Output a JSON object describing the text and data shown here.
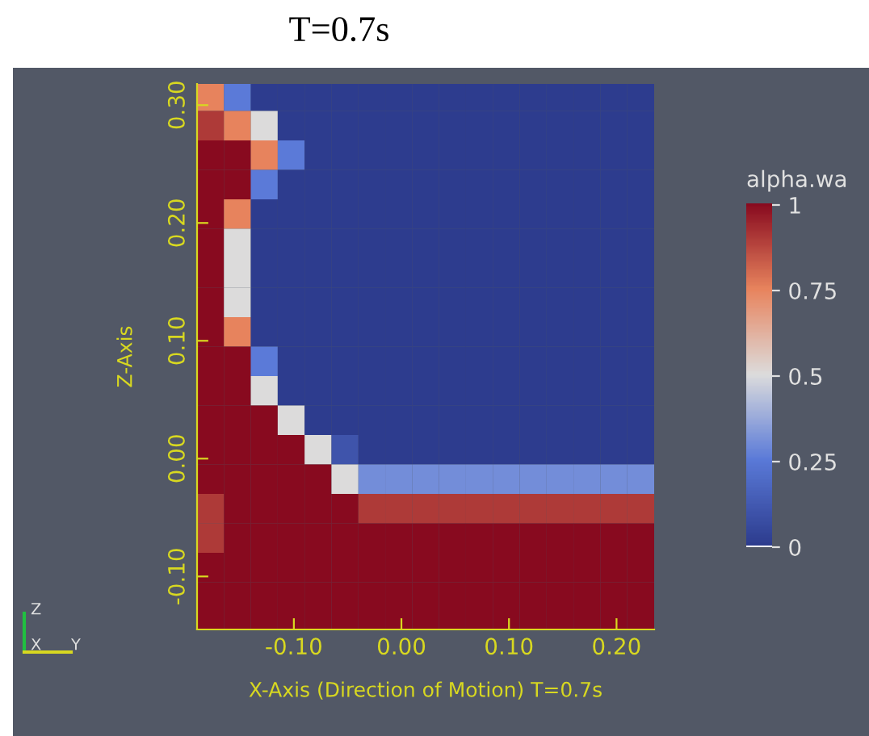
{
  "chart_data": {
    "type": "heatmap",
    "title": "T=0.7s",
    "xlabel": "X-Axis (Direction of Motion) T=0.7s",
    "ylabel": "Z-Axis",
    "clabel": "alpha.wa",
    "x": [
      -0.1775,
      -0.1525,
      -0.1275,
      -0.1025,
      -0.0775,
      -0.0525,
      -0.0275,
      -0.0025,
      0.0225,
      0.0475,
      0.0725,
      0.0975,
      0.1225,
      0.1475,
      0.1725,
      0.1975,
      0.2225
    ],
    "y": [
      0.3075,
      0.2825,
      0.2575,
      0.2325,
      0.2075,
      0.1825,
      0.1575,
      0.1325,
      0.1075,
      0.0825,
      0.0575,
      0.0325,
      0.0075,
      -0.0175,
      -0.0425,
      -0.0675,
      -0.0925,
      -0.1175,
      -0.1425
    ],
    "cells": [
      [
        0.75,
        0.25,
        0,
        0,
        0,
        0,
        0,
        0,
        0,
        0,
        0,
        0,
        0,
        0,
        0,
        0,
        0
      ],
      [
        0.9,
        0.75,
        0.5,
        0,
        0,
        0,
        0,
        0,
        0,
        0,
        0,
        0,
        0,
        0,
        0,
        0,
        0
      ],
      [
        1,
        1,
        0.75,
        0.25,
        0,
        0,
        0,
        0,
        0,
        0,
        0,
        0,
        0,
        0,
        0,
        0,
        0
      ],
      [
        1,
        1,
        0.25,
        0,
        0,
        0,
        0,
        0,
        0,
        0,
        0,
        0,
        0,
        0,
        0,
        0,
        0
      ],
      [
        1,
        0.75,
        0,
        0,
        0,
        0,
        0,
        0,
        0,
        0,
        0,
        0,
        0,
        0,
        0,
        0,
        0
      ],
      [
        1,
        0.5,
        0,
        0,
        0,
        0,
        0,
        0,
        0,
        0,
        0,
        0,
        0,
        0,
        0,
        0,
        0
      ],
      [
        1,
        0.5,
        0,
        0,
        0,
        0,
        0,
        0,
        0,
        0,
        0,
        0,
        0,
        0,
        0,
        0,
        0
      ],
      [
        1,
        0.5,
        0,
        0,
        0,
        0,
        0,
        0,
        0,
        0,
        0,
        0,
        0,
        0,
        0,
        0,
        0
      ],
      [
        1,
        0.75,
        0,
        0,
        0,
        0,
        0,
        0,
        0,
        0,
        0,
        0,
        0,
        0,
        0,
        0,
        0
      ],
      [
        1,
        1,
        0.25,
        0,
        0,
        0,
        0,
        0,
        0,
        0,
        0,
        0,
        0,
        0,
        0,
        0,
        0
      ],
      [
        1,
        1,
        0.5,
        0,
        0,
        0,
        0,
        0,
        0,
        0,
        0,
        0,
        0,
        0,
        0,
        0,
        0
      ],
      [
        1,
        1,
        1,
        0.5,
        0,
        0,
        0,
        0,
        0,
        0,
        0,
        0,
        0,
        0,
        0,
        0,
        0
      ],
      [
        1,
        1,
        1,
        1,
        0.5,
        0.1,
        0,
        0,
        0,
        0,
        0,
        0,
        0,
        0,
        0,
        0,
        0
      ],
      [
        1,
        1,
        1,
        1,
        1,
        0.5,
        0.3,
        0.3,
        0.3,
        0.3,
        0.3,
        0.3,
        0.3,
        0.3,
        0.3,
        0.3,
        0.3
      ],
      [
        0.9,
        1,
        1,
        1,
        1,
        1,
        0.9,
        0.9,
        0.9,
        0.9,
        0.9,
        0.9,
        0.9,
        0.9,
        0.9,
        0.9,
        0.9
      ],
      [
        0.9,
        1,
        1,
        1,
        1,
        1,
        1,
        1,
        1,
        1,
        1,
        1,
        1,
        1,
        1,
        1,
        1
      ],
      [
        1,
        1,
        1,
        1,
        1,
        1,
        1,
        1,
        1,
        1,
        1,
        1,
        1,
        1,
        1,
        1,
        1
      ],
      [
        1,
        1,
        1,
        1,
        1,
        1,
        1,
        1,
        1,
        1,
        1,
        1,
        1,
        1,
        1,
        1,
        1
      ],
      [
        1,
        1,
        1,
        1,
        1,
        1,
        1,
        1,
        1,
        1,
        1,
        1,
        1,
        1,
        1,
        1,
        1
      ]
    ],
    "xlim": [
      -0.19,
      0.235
    ],
    "ylim": [
      -0.145,
      0.318
    ],
    "xticks": [
      {
        "value": -0.1,
        "label": "-0.10"
      },
      {
        "value": 0,
        "label": "0.00"
      },
      {
        "value": 0.1,
        "label": "0.10"
      },
      {
        "value": 0.2,
        "label": "0.20"
      }
    ],
    "yticks": [
      {
        "value": -0.1,
        "label": "-0.10"
      },
      {
        "value": 0,
        "label": "0.00"
      },
      {
        "value": 0.1,
        "label": "0.10"
      },
      {
        "value": 0.2,
        "label": "0.20"
      },
      {
        "value": 0.3,
        "label": "0.30"
      }
    ],
    "clim": [
      0,
      1
    ],
    "cticks": [
      0,
      0.25,
      0.5,
      0.75,
      1
    ],
    "annotations": [
      "Z",
      "X",
      "Y"
    ]
  }
}
